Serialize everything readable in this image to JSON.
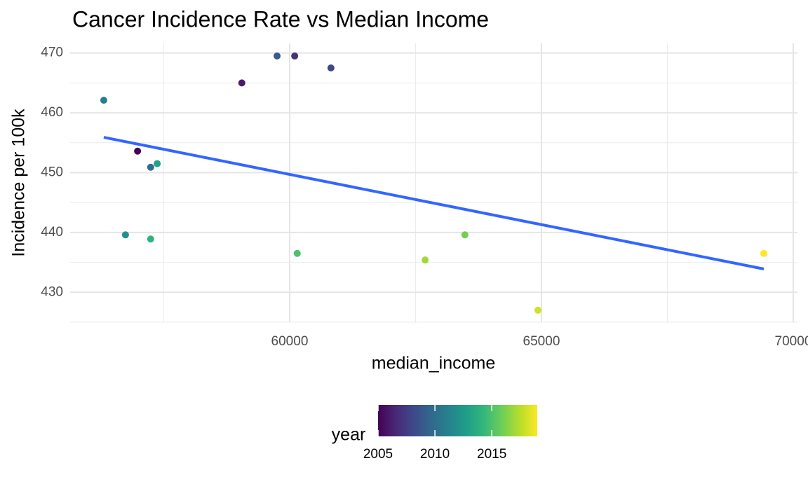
{
  "chart_data": {
    "type": "scatter",
    "title": "Cancer Incidence Rate vs Median Income",
    "x_label": "median_income",
    "y_label": "Incidence per 100k",
    "x": [
      56980,
      59050,
      60100,
      60820,
      59750,
      57240,
      56309,
      56740,
      57370,
      57240,
      60150,
      63480,
      62690,
      64930,
      69415
    ],
    "y": [
      453.6,
      465.0,
      469.5,
      467.5,
      469.5,
      450.9,
      462.1,
      439.6,
      451.5,
      438.9,
      436.5,
      439.6,
      435.4,
      427.0,
      436.5
    ],
    "color_values": [
      2005,
      2006,
      2007,
      2008,
      2009,
      2010,
      2011,
      2012,
      2013,
      2014,
      2015,
      2016,
      2017,
      2018,
      2019
    ],
    "color_label": "year",
    "colorscale": [
      "#440154",
      "#482878",
      "#3e4989",
      "#31688e",
      "#26828e",
      "#1f9e89",
      "#35b779",
      "#6ece58",
      "#b5de2b",
      "#fde725"
    ],
    "color_lim": [
      2005,
      2019
    ],
    "color_ticks": [
      2005,
      2010,
      2015
    ],
    "trend": {
      "x": [
        56309,
        69415
      ],
      "y": [
        455.9,
        433.9
      ],
      "color": "#3366FF"
    },
    "xlim": [
      55641,
      70084
    ],
    "ylim": [
      425,
      471.6
    ],
    "xticks": [
      60000,
      65000,
      70000
    ],
    "yticks": [
      430,
      440,
      450,
      460,
      470
    ],
    "grid": true,
    "legend": "bottom"
  }
}
